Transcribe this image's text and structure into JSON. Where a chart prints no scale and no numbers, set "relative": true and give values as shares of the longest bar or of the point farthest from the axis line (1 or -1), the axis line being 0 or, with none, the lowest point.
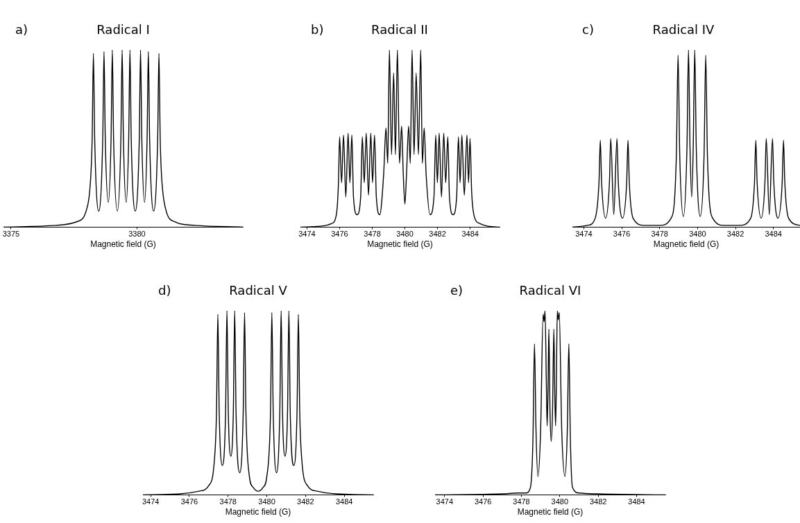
{
  "chart_data": [
    {
      "type": "line",
      "title": "Radical I",
      "annotations": [
        "a)"
      ],
      "xlabel": "Magnetic field (G)",
      "relative": true,
      "color": "#000000",
      "xlim": [
        3374.7,
        3384.2
      ],
      "xticks": [
        3375,
        3380
      ],
      "x": [
        3374.7,
        3376.8,
        3377.6,
        3378.0,
        3378.17,
        3378.22,
        3378.27,
        3378.32,
        3378.48,
        3378.64,
        3378.69,
        3378.74,
        3378.86,
        3378.97,
        3379.02,
        3379.07,
        3379.22,
        3379.36,
        3379.41,
        3379.46,
        3379.57,
        3379.67,
        3379.72,
        3379.77,
        3379.93,
        3380.09,
        3380.14,
        3380.19,
        3380.3,
        3380.4,
        3380.45,
        3380.5,
        3380.66,
        3380.82,
        3380.87,
        3380.92,
        3380.97,
        3381.14,
        3381.5,
        3382.3,
        3384.2
      ],
      "values": [
        0,
        0.01,
        0.03,
        0.1,
        0.3,
        0.5,
        0.98,
        0.5,
        0.09,
        0.5,
        0.99,
        0.5,
        0.14,
        0.5,
        1,
        0.5,
        0.09,
        0.5,
        1,
        0.5,
        0.14,
        0.5,
        1,
        0.5,
        0.09,
        0.5,
        1,
        0.5,
        0.14,
        0.5,
        0.99,
        0.5,
        0.09,
        0.5,
        0.98,
        0.5,
        0.3,
        0.1,
        0.03,
        0.01,
        0
      ]
    },
    {
      "type": "line",
      "title": "Radical II",
      "annotations": [
        "b)"
      ],
      "xlabel": "Magnetic field (G)",
      "relative": true,
      "color": "#000000",
      "xlim": [
        3473.6,
        3485.8
      ],
      "xticks": [
        3474,
        3476,
        3478,
        3480,
        3482,
        3484
      ],
      "x": [
        3473.6,
        3474.8,
        3475.5,
        3475.8,
        3475.93,
        3476.0,
        3476.12,
        3476.24,
        3476.38,
        3476.52,
        3476.63,
        3476.75,
        3476.85,
        3477.07,
        3477.29,
        3477.39,
        3477.51,
        3477.63,
        3477.77,
        3477.91,
        3478.02,
        3478.14,
        3478.25,
        3478.46,
        3478.7,
        3478.84,
        3478.95,
        3479.05,
        3479.18,
        3479.31,
        3479.42,
        3479.54,
        3479.67,
        3479.8,
        3479.9,
        3480.0,
        3480.1,
        3480.23,
        3480.33,
        3480.44,
        3480.56,
        3480.69,
        3480.83,
        3480.97,
        3481.07,
        3481.18,
        3481.3,
        3481.54,
        3481.78,
        3481.89,
        3481.99,
        3482.1,
        3482.24,
        3482.38,
        3482.5,
        3482.63,
        3482.73,
        3482.95,
        3483.17,
        3483.28,
        3483.38,
        3483.49,
        3483.64,
        3483.8,
        3483.9,
        3483.99,
        3484.09,
        3484.25,
        3484.6,
        3485.1,
        3485.8
      ],
      "values": [
        0,
        0.005,
        0.02,
        0.07,
        0.25,
        0.51,
        0.25,
        0.52,
        0.17,
        0.53,
        0.25,
        0.52,
        0.17,
        0.07,
        0.17,
        0.51,
        0.25,
        0.53,
        0.18,
        0.53,
        0.25,
        0.52,
        0.17,
        0.07,
        0.3,
        0.56,
        0.36,
        1,
        0.41,
        0.87,
        0.41,
        1,
        0.36,
        0.57,
        0.3,
        0.13,
        0.3,
        0.57,
        0.36,
        1,
        0.41,
        0.87,
        0.41,
        1,
        0.36,
        0.56,
        0.3,
        0.07,
        0.17,
        0.52,
        0.25,
        0.53,
        0.17,
        0.53,
        0.25,
        0.51,
        0.17,
        0.07,
        0.17,
        0.51,
        0.25,
        0.52,
        0.18,
        0.52,
        0.25,
        0.5,
        0.2,
        0.06,
        0.02,
        0.005,
        0
      ]
    },
    {
      "type": "line",
      "title": "Radical IV",
      "annotations": [
        "c)"
      ],
      "xlabel": "Magnetic field (G)",
      "relative": true,
      "color": "#000000",
      "xlim": [
        3473.4,
        3485.4
      ],
      "xticks": [
        3474,
        3476,
        3478,
        3480,
        3482,
        3484
      ],
      "x": [
        3473.4,
        3474.2,
        3474.6,
        3474.8,
        3474.87,
        3474.94,
        3475.15,
        3475.35,
        3475.42,
        3475.58,
        3475.75,
        3475.82,
        3476.04,
        3476.26,
        3476.33,
        3476.4,
        3476.6,
        3477.2,
        3478.0,
        3478.6,
        3478.88,
        3478.97,
        3479.06,
        3479.25,
        3479.44,
        3479.52,
        3479.6,
        3479.69,
        3479.77,
        3479.85,
        3479.93,
        3480.14,
        3480.34,
        3480.43,
        3480.52,
        3480.8,
        3481.4,
        3482.2,
        3482.8,
        3483.0,
        3483.07,
        3483.14,
        3483.35,
        3483.55,
        3483.62,
        3483.78,
        3483.95,
        3484.02,
        3484.24,
        3484.46,
        3484.53,
        3484.6,
        3484.8,
        3485.4
      ],
      "values": [
        0,
        0.01,
        0.05,
        0.25,
        0.49,
        0.25,
        0.05,
        0.25,
        0.5,
        0.07,
        0.5,
        0.25,
        0.05,
        0.25,
        0.49,
        0.25,
        0.05,
        0.01,
        0.01,
        0.05,
        0.4,
        0.97,
        0.4,
        0.06,
        0.45,
        1,
        0.45,
        0.17,
        0.45,
        1,
        0.45,
        0.06,
        0.4,
        0.97,
        0.4,
        0.05,
        0.01,
        0.01,
        0.05,
        0.25,
        0.49,
        0.25,
        0.05,
        0.25,
        0.5,
        0.07,
        0.5,
        0.25,
        0.05,
        0.25,
        0.49,
        0.25,
        0.05,
        0.01
      ]
    },
    {
      "type": "line",
      "title": "Radical V",
      "annotations": [
        "d)"
      ],
      "xlabel": "Magnetic field (G)",
      "relative": true,
      "color": "#000000",
      "xlim": [
        3473.6,
        3485.5
      ],
      "xticks": [
        3474,
        3476,
        3478,
        3480,
        3482,
        3484
      ],
      "x": [
        3473.6,
        3475.5,
        3476.5,
        3477.0,
        3477.3,
        3477.4,
        3477.47,
        3477.54,
        3477.7,
        3477.87,
        3477.94,
        3478.01,
        3478.14,
        3478.27,
        3478.34,
        3478.41,
        3478.6,
        3478.78,
        3478.85,
        3478.92,
        3479.1,
        3479.3,
        3479.55,
        3479.8,
        3480.0,
        3480.19,
        3480.26,
        3480.33,
        3480.5,
        3480.67,
        3480.74,
        3480.81,
        3480.94,
        3481.07,
        3481.14,
        3481.21,
        3481.4,
        3481.56,
        3481.63,
        3481.7,
        3481.8,
        3482.1,
        3482.6,
        3483.6,
        3485.5
      ],
      "values": [
        0,
        0.005,
        0.02,
        0.05,
        0.2,
        0.45,
        0.98,
        0.45,
        0.16,
        0.45,
        1,
        0.45,
        0.21,
        0.45,
        1,
        0.45,
        0.12,
        0.45,
        0.99,
        0.45,
        0.1,
        0.04,
        0.02,
        0.04,
        0.1,
        0.45,
        0.99,
        0.45,
        0.12,
        0.45,
        1,
        0.45,
        0.21,
        0.45,
        1,
        0.45,
        0.16,
        0.45,
        0.98,
        0.45,
        0.2,
        0.05,
        0.02,
        0.005,
        0
      ]
    },
    {
      "type": "line",
      "title": "Radical VI",
      "annotations": [
        "e)"
      ],
      "xlabel": "Magnetic field (G)",
      "relative": true,
      "color": "#000000",
      "xlim": [
        3473.5,
        3485.5
      ],
      "xticks": [
        3474,
        3476,
        3478,
        3480,
        3482,
        3484
      ],
      "x": [
        3473.5,
        3477.0,
        3477.8,
        3478.23,
        3478.47,
        3478.6,
        3478.68,
        3478.76,
        3478.86,
        3479.0,
        3479.13,
        3479.18,
        3479.23,
        3479.3,
        3479.34,
        3479.39,
        3479.43,
        3479.49,
        3479.55,
        3479.62,
        3479.69,
        3479.73,
        3479.78,
        3479.82,
        3479.87,
        3479.92,
        3479.97,
        3480.1,
        3480.27,
        3480.39,
        3480.47,
        3480.55,
        3480.66,
        3481.0,
        3482.0,
        3485.5
      ],
      "values": [
        0,
        0.005,
        0.01,
        0.01,
        0.04,
        0.3,
        0.82,
        0.35,
        0.1,
        0.35,
        0.98,
        0.94,
        1,
        0.6,
        0.375,
        0.6,
        0.9,
        0.45,
        0.29,
        0.45,
        0.9,
        0.6,
        0.375,
        0.6,
        1,
        0.95,
        0.99,
        0.35,
        0.1,
        0.35,
        0.82,
        0.3,
        0.04,
        0.01,
        0.005,
        0
      ]
    }
  ]
}
